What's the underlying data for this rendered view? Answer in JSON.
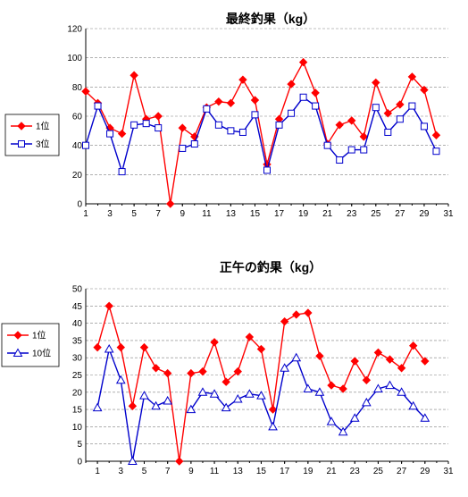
{
  "chart_data": [
    {
      "type": "line",
      "title": "最終釣果（kg）",
      "xlabel": "",
      "ylabel": "",
      "xlim": [
        1,
        31
      ],
      "ylim": [
        0,
        120
      ],
      "ystep": 20,
      "grid": "horizontal-dashed",
      "legend": "left",
      "x_ticks": [
        1,
        3,
        5,
        7,
        9,
        11,
        13,
        15,
        17,
        19,
        21,
        23,
        25,
        27,
        29,
        31
      ],
      "series": [
        {
          "name": "1位",
          "color": "#ff0000",
          "marker": "diamond",
          "x": [
            1,
            2,
            3,
            4,
            5,
            6,
            7,
            8,
            9,
            10,
            11,
            12,
            13,
            14,
            15,
            16,
            17,
            18,
            19,
            20,
            21,
            22,
            23,
            24,
            25,
            26,
            27,
            28,
            29,
            30
          ],
          "values": [
            77,
            69,
            52,
            48,
            88,
            58,
            60,
            0,
            52,
            46,
            66,
            70,
            69,
            85,
            71,
            27,
            58,
            82,
            97,
            76,
            41,
            54,
            57,
            46,
            83,
            62,
            68,
            87,
            78,
            47
          ]
        },
        {
          "name": "3位",
          "color": "#0000cc",
          "marker": "square-open",
          "x": [
            1,
            2,
            3,
            4,
            5,
            6,
            7,
            8,
            9,
            10,
            11,
            12,
            13,
            14,
            15,
            16,
            17,
            18,
            19,
            20,
            21,
            22,
            23,
            24,
            25,
            26,
            27,
            28,
            29,
            30
          ],
          "values": [
            40,
            67,
            48,
            22,
            54,
            55,
            52,
            null,
            38,
            41,
            65,
            54,
            50,
            49,
            61,
            23,
            54,
            62,
            73,
            67,
            40,
            30,
            37,
            37,
            66,
            49,
            58,
            67,
            53,
            36
          ]
        }
      ]
    },
    {
      "type": "line",
      "title": "正午の釣果（kg）",
      "xlabel": "",
      "ylabel": "",
      "xlim": [
        0,
        31
      ],
      "ylim": [
        0,
        50
      ],
      "ystep": 5,
      "grid": "horizontal-dashed",
      "legend": "left",
      "x_ticks": [
        1,
        3,
        5,
        7,
        9,
        11,
        13,
        15,
        17,
        19,
        21,
        23,
        25,
        27,
        29,
        31
      ],
      "series": [
        {
          "name": "1位",
          "color": "#ff0000",
          "marker": "diamond",
          "x": [
            1,
            2,
            3,
            4,
            5,
            6,
            7,
            8,
            9,
            10,
            11,
            12,
            13,
            14,
            15,
            16,
            17,
            18,
            19,
            20,
            21,
            22,
            23,
            24,
            25,
            26,
            27,
            28,
            29
          ],
          "values": [
            33,
            45,
            33,
            16,
            33,
            27,
            25.5,
            0,
            25.5,
            26,
            34.5,
            23,
            26,
            36,
            32.5,
            15,
            40.5,
            42.5,
            43,
            30.5,
            22,
            21,
            29,
            23.5,
            31.5,
            29.5,
            27,
            33.5,
            29
          ]
        },
        {
          "name": "10位",
          "color": "#0000cc",
          "marker": "triangle-open",
          "x": [
            1,
            2,
            3,
            4,
            5,
            6,
            7,
            8,
            9,
            10,
            11,
            12,
            13,
            14,
            15,
            16,
            17,
            18,
            19,
            20,
            21,
            22,
            23,
            24,
            25,
            26,
            27,
            28,
            29
          ],
          "values": [
            15.5,
            32.5,
            23.5,
            0,
            19,
            16,
            17.5,
            null,
            15,
            20,
            19.5,
            15.5,
            18,
            19.5,
            19,
            10,
            27,
            30,
            21,
            20,
            11.5,
            8.5,
            12.5,
            17,
            21,
            22,
            20,
            16,
            12.5
          ]
        }
      ]
    }
  ]
}
